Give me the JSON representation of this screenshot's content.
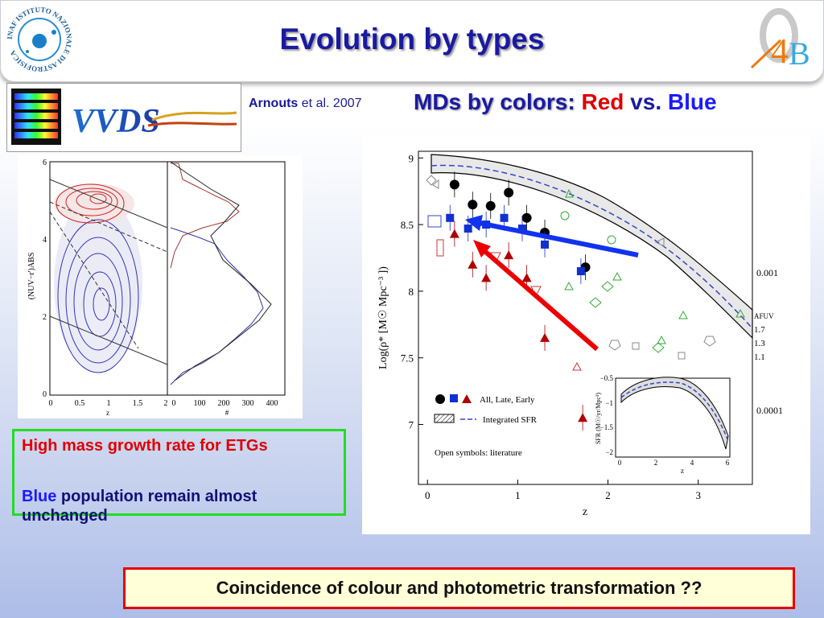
{
  "slide": {
    "title": "Evolution by types",
    "credit_author": "Arnouts",
    "credit_rest": "et al. 2007",
    "subtitle_part1": "MDs by colors:",
    "subtitle_red": "Red",
    "subtitle_vs": "vs.",
    "subtitle_blue": "Blue",
    "note1": "High mass growth rate for ETGs",
    "note2_blue": "Blue",
    "note2_rest": "population remain almost unchanged",
    "banner": "Coincidence of colour and photometric transformation ??"
  },
  "logos": {
    "inaf_text": "INAF ISTITUTO NAZIONALE DI ASTROFISICA",
    "vvds_text": "VVDS",
    "ob_text": "O",
    "four_text": "4",
    "b_text": "B"
  },
  "left_figure": {
    "ylabel": "(NUV−r')ABS",
    "xlabel_left": "z",
    "xlabel_right": "#",
    "y_ticks": [
      "6",
      "4",
      "2",
      "0"
    ],
    "x_ticks_left": [
      "0",
      "0.5",
      "1",
      "1.5",
      "2"
    ],
    "x_ticks_right": [
      "0",
      "100",
      "200",
      "300",
      "400"
    ]
  },
  "chart_data": {
    "type": "scatter",
    "title": "",
    "xlabel": "z",
    "ylabel": "Log(ρ* [M☉ Mpc⁻³ ])",
    "xlim": [
      -0.1,
      3.6
    ],
    "ylim": [
      6.55,
      9.05
    ],
    "x_ticks": [
      "0",
      "1",
      "2",
      "3"
    ],
    "y_ticks": [
      "9",
      "8.5",
      "8",
      "7.5",
      "7"
    ],
    "legend": [
      "All, Late, Early",
      "Integrated SFR",
      "Open symbols: literature"
    ],
    "series": [
      {
        "name": "All",
        "color": "#000000",
        "marker": "circle",
        "points": [
          [
            0.3,
            8.8
          ],
          [
            0.5,
            8.65
          ],
          [
            0.7,
            8.64
          ],
          [
            0.9,
            8.74
          ],
          [
            1.1,
            8.55
          ],
          [
            1.3,
            8.44
          ],
          [
            1.75,
            8.18
          ]
        ]
      },
      {
        "name": "Late",
        "color": "#1030d0",
        "marker": "square",
        "points": [
          [
            0.25,
            8.55
          ],
          [
            0.45,
            8.47
          ],
          [
            0.65,
            8.5
          ],
          [
            0.85,
            8.55
          ],
          [
            1.05,
            8.47
          ],
          [
            1.3,
            8.35
          ],
          [
            1.7,
            8.15
          ]
        ]
      },
      {
        "name": "Early",
        "color": "#b00000",
        "marker": "triangle",
        "points": [
          [
            0.3,
            8.43
          ],
          [
            0.5,
            8.2
          ],
          [
            0.65,
            8.1
          ],
          [
            0.9,
            8.27
          ],
          [
            1.1,
            8.1
          ],
          [
            1.3,
            7.65
          ],
          [
            1.72,
            7.05
          ]
        ]
      }
    ],
    "right_labels": [
      "0.001",
      "0.0001",
      "AFUV",
      "1.7",
      "1.3",
      "1.1"
    ],
    "inset": {
      "xlabel": "z",
      "ylabel": "SFR (M☉/yr/Mpc³)",
      "x_ticks": [
        "0",
        "2",
        "4",
        "6"
      ],
      "y_ticks": [
        "−0.5",
        "−1",
        "−1.5",
        "−2"
      ]
    }
  },
  "colors": {
    "title": "#1a1aa0",
    "red_arrow": "#ee0000",
    "blue_arrow": "#1133ee",
    "note_border": "#22dd22",
    "banner_border": "#e60000"
  }
}
